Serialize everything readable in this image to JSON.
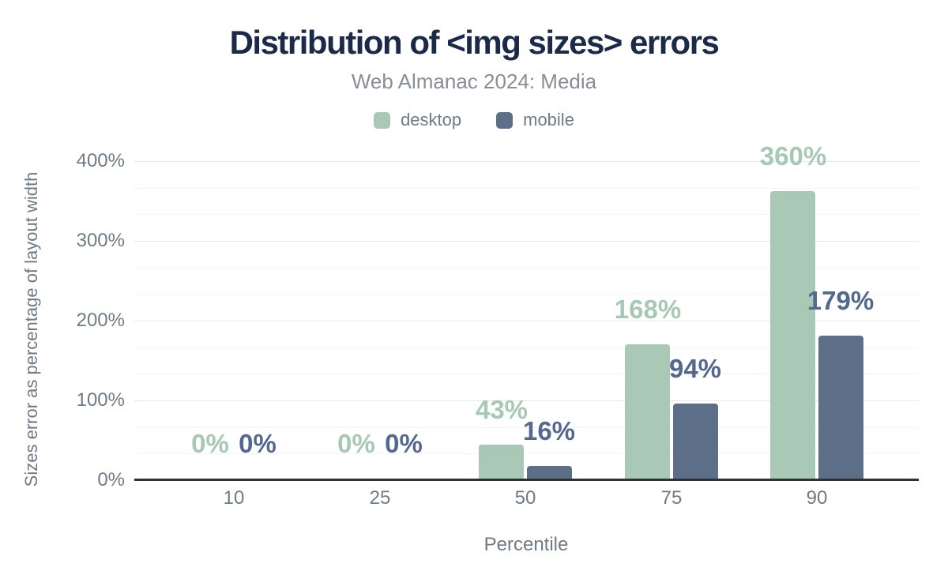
{
  "title": "Distribution of <img sizes> errors",
  "subtitle": "Web Almanac 2024: Media",
  "legend": {
    "items": [
      {
        "label": "desktop",
        "color": "#a9c8b6"
      },
      {
        "label": "mobile",
        "color": "#5d6e89"
      }
    ]
  },
  "chart_data": {
    "type": "bar",
    "title": "Distribution of <img sizes> errors",
    "subtitle": "Web Almanac 2024: Media",
    "categories": [
      "10",
      "25",
      "50",
      "75",
      "90"
    ],
    "series": [
      {
        "name": "desktop",
        "color": "#a9c8b6",
        "label_color": "#a6c8b5",
        "values": [
          0,
          0,
          43,
          168,
          360
        ],
        "labels": [
          "0%",
          "0%",
          "43%",
          "168%",
          "360%"
        ]
      },
      {
        "name": "mobile",
        "color": "#5d6e89",
        "label_color": "#54688f",
        "values": [
          0,
          0,
          16,
          94,
          179
        ],
        "labels": [
          "0%",
          "0%",
          "16%",
          "94%",
          "179%"
        ]
      }
    ],
    "xlabel": "Percentile",
    "ylabel": "Sizes error as percentage of layout width",
    "ylim": [
      0,
      400
    ],
    "yticks": [
      0,
      100,
      200,
      300,
      400
    ],
    "ytick_labels": [
      "0%",
      "100%",
      "200%",
      "300%",
      "400%"
    ],
    "minor_grid_fraction": 3,
    "grid": true,
    "legend_position": "top",
    "colors": {
      "title": "#1c2a4a",
      "subtitle": "#878e96",
      "axis_text": "#6e7a85",
      "axis_line": "#2f3136",
      "grid_major": "#e8e8e8",
      "grid_minor": "#f5f5f5"
    }
  }
}
